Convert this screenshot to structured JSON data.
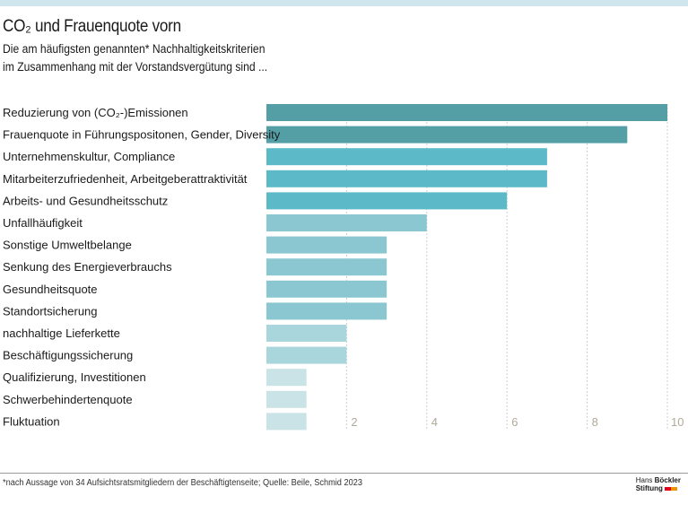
{
  "header": {
    "title": "CO₂ und Frauenquote vorn",
    "subtitle_line1": "Die am häufigsten genannten* Nachhaltigkeitskriterien",
    "subtitle_line2": "im Zusammenhang mit der Vorstandsvergütung sind ..."
  },
  "chart_data": {
    "type": "bar",
    "orientation": "horizontal",
    "categories": [
      "Reduzierung von (CO₂-)Emissionen",
      "Frauenquote in Führungspositonen, Gender, Diversity",
      "Unternehmenskultur, Compliance",
      "Mitarbeiterzufriedenheit, Arbeitgeberattraktivität",
      "Arbeits- und Gesundheitsschutz",
      "Unfallhäufigkeit",
      "Sonstige Umweltbelange",
      "Senkung des Energieverbrauchs",
      "Gesundheitsquote",
      "Standortsicherung",
      "nachhaltige Lieferkette",
      "Beschäftigungssicherung",
      "Qualifizierung, Investitionen",
      "Schwerbehindertenquote",
      "Fluktuation"
    ],
    "values": [
      10,
      9,
      7,
      7,
      6,
      4,
      3,
      3,
      3,
      3,
      2,
      2,
      1,
      1,
      1
    ],
    "xlim": [
      0,
      10
    ],
    "xticks": [
      "2",
      "4",
      "6",
      "8",
      "10"
    ],
    "xtick_values": [
      2,
      4,
      6,
      8,
      10
    ],
    "grid": true,
    "colors": {
      "10": "#549ea6",
      "9": "#549ea6",
      "7": "#5cbac8",
      "6": "#5cbac8",
      "4": "#8bc7d1",
      "3": "#8bc7d1",
      "2": "#a9d5dd",
      "1": "#c9e3e7"
    }
  },
  "footer": {
    "note": "*nach Aussage von 34 Aufsichtsratsmitgliedern der Beschäftigtenseite; Quelle: Beile, Schmid 2023",
    "logo_line1a": "Hans",
    "logo_line1b": "Böckler",
    "logo_line2": "Stiftung"
  }
}
